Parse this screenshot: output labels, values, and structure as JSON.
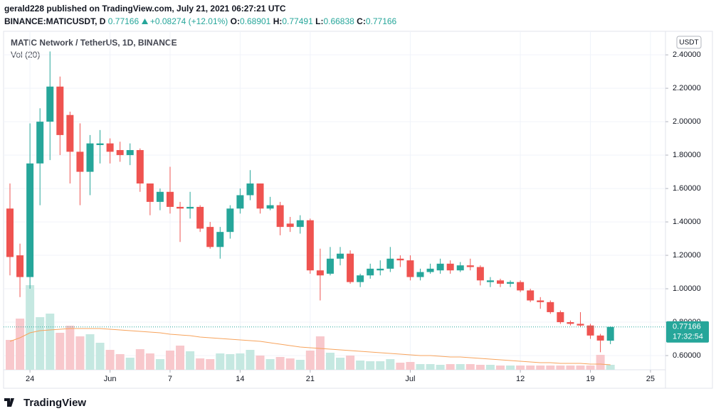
{
  "header": {
    "publisher": "gerald228 published on TradingView.com, July 21, 2021 06:27:21 UTC",
    "symbol": "BINANCE:MATICUSDT, D",
    "last": "0.77166",
    "change": "+0.08274 (+12.01%)",
    "ohlc": [
      {
        "key": "O:",
        "value": "0.68901"
      },
      {
        "key": "H:",
        "value": "0.77491"
      },
      {
        "key": "L:",
        "value": "0.66838"
      },
      {
        "key": "C:",
        "value": "0.77166"
      }
    ]
  },
  "chart_data": {
    "type": "candlestick",
    "title": "MATIC Network / TetherUS, 1D, BINANCE",
    "currency": "USDT",
    "countdown": "17:32:54",
    "open": [
      1.48,
      1.2,
      1.07,
      1.75,
      2.0,
      2.21,
      2.04,
      1.82,
      1.7,
      1.86,
      1.87,
      1.83,
      1.8,
      1.83,
      1.63,
      1.52,
      1.58,
      1.49,
      1.48,
      1.49,
      1.37,
      1.25,
      1.34,
      1.48,
      1.56,
      1.63,
      1.48,
      1.5,
      1.39,
      1.37,
      1.41,
      1.11,
      1.09,
      1.18,
      1.21,
      1.04,
      1.08,
      1.11,
      1.12,
      1.18,
      1.17,
      1.07,
      1.1,
      1.11,
      1.15,
      1.11,
      1.14,
      1.13,
      1.04,
      1.05,
      1.03,
      1.04,
      0.99,
      0.93,
      0.92,
      0.86,
      0.8,
      0.79,
      0.78,
      0.72,
      0.68901
    ],
    "high": [
      1.63,
      1.27,
      1.99,
      2.08,
      2.42,
      2.27,
      2.06,
      1.99,
      1.92,
      1.95,
      1.9,
      1.88,
      1.87,
      1.84,
      1.63,
      1.6,
      1.73,
      1.52,
      1.58,
      1.5,
      1.4,
      1.37,
      1.5,
      1.6,
      1.71,
      1.63,
      1.55,
      1.52,
      1.43,
      1.44,
      1.42,
      1.24,
      1.25,
      1.25,
      1.23,
      1.09,
      1.15,
      1.17,
      1.25,
      1.2,
      1.2,
      1.12,
      1.15,
      1.18,
      1.17,
      1.16,
      1.18,
      1.14,
      1.07,
      1.06,
      1.05,
      1.05,
      1.0,
      0.95,
      0.93,
      0.87,
      0.81,
      0.86,
      0.79,
      0.73,
      0.77491
    ],
    "low": [
      1.08,
      0.95,
      1.0,
      1.5,
      1.77,
      1.8,
      1.63,
      1.5,
      1.56,
      1.75,
      1.75,
      1.76,
      1.74,
      1.58,
      1.44,
      1.47,
      1.45,
      1.28,
      1.42,
      1.34,
      1.24,
      1.18,
      1.3,
      1.45,
      1.53,
      1.45,
      1.47,
      1.32,
      1.34,
      1.33,
      1.09,
      0.93,
      1.08,
      1.14,
      1.03,
      1.01,
      1.06,
      1.08,
      1.1,
      1.13,
      1.05,
      1.05,
      1.09,
      1.09,
      1.09,
      1.1,
      1.11,
      1.02,
      1.01,
      1.01,
      1.01,
      0.98,
      0.92,
      0.88,
      0.85,
      0.79,
      0.78,
      0.77,
      0.7,
      0.62,
      0.66838
    ],
    "close": [
      1.19,
      1.07,
      1.75,
      2.0,
      2.21,
      1.92,
      1.82,
      1.7,
      1.87,
      1.87,
      1.82,
      1.8,
      1.83,
      1.63,
      1.52,
      1.58,
      1.49,
      1.48,
      1.49,
      1.36,
      1.25,
      1.34,
      1.48,
      1.56,
      1.63,
      1.48,
      1.5,
      1.37,
      1.37,
      1.41,
      1.11,
      1.08,
      1.18,
      1.21,
      1.04,
      1.08,
      1.12,
      1.12,
      1.18,
      1.17,
      1.07,
      1.1,
      1.12,
      1.15,
      1.11,
      1.14,
      1.13,
      1.05,
      1.05,
      1.03,
      1.04,
      0.99,
      0.93,
      0.92,
      0.86,
      0.8,
      0.79,
      0.78,
      0.72,
      0.69,
      0.77166
    ],
    "up_color": "#26a69a",
    "down_color": "#ef5350",
    "volume": {
      "name": "Vol (20)",
      "values": [
        42,
        72,
        119,
        74,
        79,
        52,
        62,
        47,
        50,
        38,
        28,
        22,
        17,
        29,
        23,
        15,
        27,
        34,
        26,
        16,
        15,
        23,
        22,
        23,
        28,
        20,
        15,
        18,
        16,
        14,
        27,
        47,
        24,
        17,
        20,
        13,
        12,
        12,
        15,
        10,
        11,
        8,
        8,
        7,
        8,
        8,
        8,
        7,
        7,
        6,
        6,
        6,
        6,
        6,
        6,
        6,
        6,
        6,
        6,
        21,
        7
      ],
      "ma": [
        40,
        45,
        52,
        55,
        56,
        57,
        58,
        58,
        58,
        58,
        57,
        56,
        55,
        54,
        53,
        52,
        50,
        49,
        48,
        46,
        45,
        44,
        43,
        42,
        41,
        40,
        38,
        36,
        34,
        32,
        31,
        30,
        29,
        28,
        27,
        26,
        25,
        24,
        23,
        22,
        21,
        20,
        20,
        19,
        18,
        18,
        17,
        16,
        15,
        14,
        13,
        12,
        11,
        10,
        10,
        9,
        9,
        9,
        8,
        8,
        7
      ],
      "ma_color": "#f7a35c",
      "up_color": "#c5e8e1",
      "down_color": "#f8c8cc",
      "vlim": [
        0,
        120
      ]
    },
    "xlim": [
      -0.64,
      65.5
    ],
    "xticks": [
      {
        "value": 2,
        "label": "24"
      },
      {
        "value": 10,
        "label": "Jun"
      },
      {
        "value": 16,
        "label": "7"
      },
      {
        "value": 23,
        "label": "14"
      },
      {
        "value": 30,
        "label": "21"
      },
      {
        "value": 40,
        "label": "Jul"
      },
      {
        "value": 51,
        "label": "12"
      },
      {
        "value": 58,
        "label": "19"
      },
      {
        "value": 64,
        "label": "25"
      }
    ],
    "ylim": [
      0.515,
      2.541
    ],
    "yticks": [
      {
        "value": 0.6,
        "label": "0.60000"
      },
      {
        "value": 0.8,
        "label": "0.80000"
      },
      {
        "value": 1.0,
        "label": "1.00000"
      },
      {
        "value": 1.2,
        "label": "1.20000"
      },
      {
        "value": 1.4,
        "label": "1.40000"
      },
      {
        "value": 1.6,
        "label": "1.60000"
      },
      {
        "value": 1.8,
        "label": "1.80000"
      },
      {
        "value": 2.0,
        "label": "2.00000"
      },
      {
        "value": 2.2,
        "label": "2.20000"
      },
      {
        "value": 2.4,
        "label": "2.40000"
      }
    ],
    "grid": true
  },
  "footer": {
    "logo": "TradingView"
  }
}
